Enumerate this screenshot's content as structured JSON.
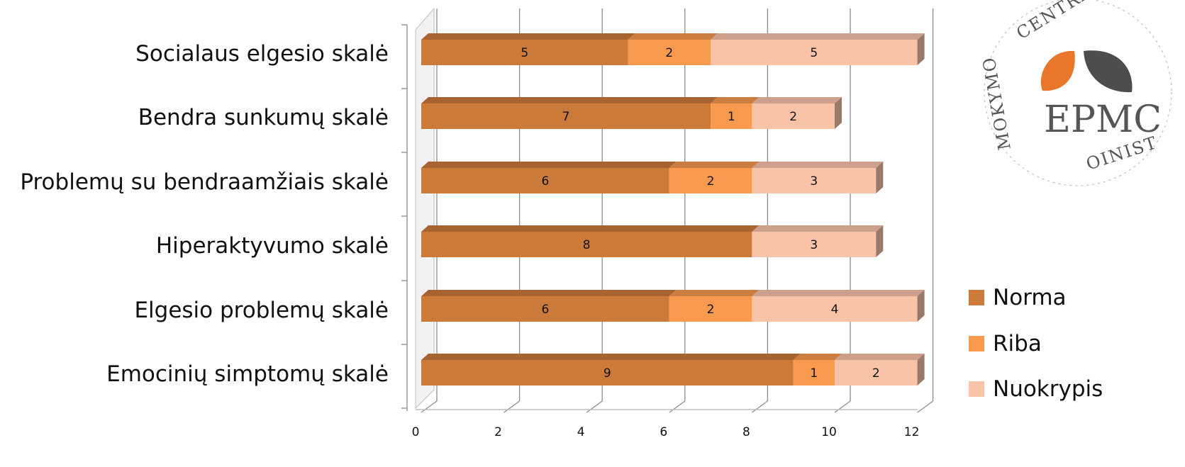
{
  "chart_data": {
    "type": "bar",
    "orientation": "horizontal",
    "stacked": true,
    "categories": [
      "Socialaus elgesio skalė",
      "Bendra sunkumų skalė",
      "Problemų su bendraamžiais skalė",
      "Hiperaktyvumo skalė",
      "Elgesio problemų skalė",
      "Emocinių simptomų skalė"
    ],
    "series": [
      {
        "name": "Norma",
        "color": "#cc7a3a",
        "values": [
          5,
          7,
          6,
          8,
          6,
          9
        ]
      },
      {
        "name": "Riba",
        "color": "#f79a4d",
        "values": [
          2,
          1,
          2,
          0,
          2,
          1
        ]
      },
      {
        "name": "Nuokrypis",
        "color": "#f9c3a8",
        "values": [
          5,
          2,
          3,
          3,
          4,
          2
        ]
      }
    ],
    "xlim": [
      0,
      12
    ],
    "xticks": [
      "0",
      "2",
      "4",
      "6",
      "8",
      "10",
      "12"
    ],
    "grid": true,
    "legend_position": "right"
  },
  "logo": {
    "text": "EPMC",
    "ring_text_top": "CENTRAS",
    "ring_text_left": "MOKYMO",
    "ring_text_bottom": "OINIST",
    "accent_color": "#e8772b",
    "dark_color": "#4d4d4d"
  }
}
